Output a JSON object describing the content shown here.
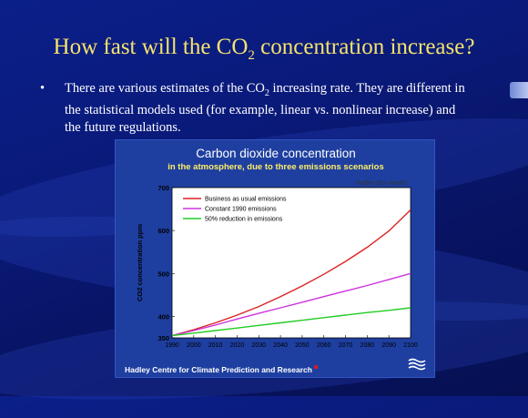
{
  "slide": {
    "title_pre": "How fast will the CO",
    "title_sub": "2",
    "title_post": " concentration increase?",
    "bullet_mark": "•",
    "bullet_pre": "There are various estimates of the CO",
    "bullet_sub": "2",
    "bullet_post": " increasing rate. They are different in the statistical models used (for example, linear vs. nonlinear increase) and the future regulations."
  },
  "chart_panel": {
    "footer": "Hadley Centre for Climate Prediction and Research",
    "logo_label": "Met Office"
  },
  "colors": {
    "title": "#f5e36b",
    "panel": "#1e3fa0",
    "business_as_usual": "#dd2222",
    "constant_1990": "#cc33dd",
    "reduction_50": "#22cc22"
  },
  "chart_data": {
    "type": "line",
    "title": "Carbon dioxide concentration",
    "subtitle": "in the atmosphere, due to three emissions scenarios",
    "source_note": "Hadley Box Model",
    "xlabel": "",
    "ylabel": "CO2 concentration ppm",
    "xlim": [
      1990,
      2100
    ],
    "ylim": [
      350,
      700
    ],
    "x_ticks": [
      "1990",
      "2000",
      "2010",
      "2020",
      "2030",
      "2040",
      "2050",
      "2060",
      "2070",
      "2080",
      "2090",
      "2100"
    ],
    "y_ticks": [
      350,
      400,
      500,
      600,
      700
    ],
    "grid": false,
    "legend_position": "top-left",
    "x": [
      1990,
      2000,
      2010,
      2020,
      2030,
      2040,
      2050,
      2060,
      2070,
      2080,
      2090,
      2100
    ],
    "series": [
      {
        "name": "Business as usual emissions",
        "color": "#dd2222",
        "values": [
          355,
          369,
          385,
          403,
          423,
          446,
          471,
          498,
          528,
          561,
          599,
          648
        ]
      },
      {
        "name": "Constant 1990 emissions",
        "color": "#cc33dd",
        "values": [
          355,
          367,
          380,
          394,
          407,
          420,
          433,
          446,
          459,
          472,
          486,
          500
        ]
      },
      {
        "name": "50% reduction in emissions",
        "color": "#22cc22",
        "values": [
          355,
          361,
          367,
          373,
          379,
          385,
          391,
          397,
          403,
          409,
          414,
          420
        ]
      }
    ]
  }
}
